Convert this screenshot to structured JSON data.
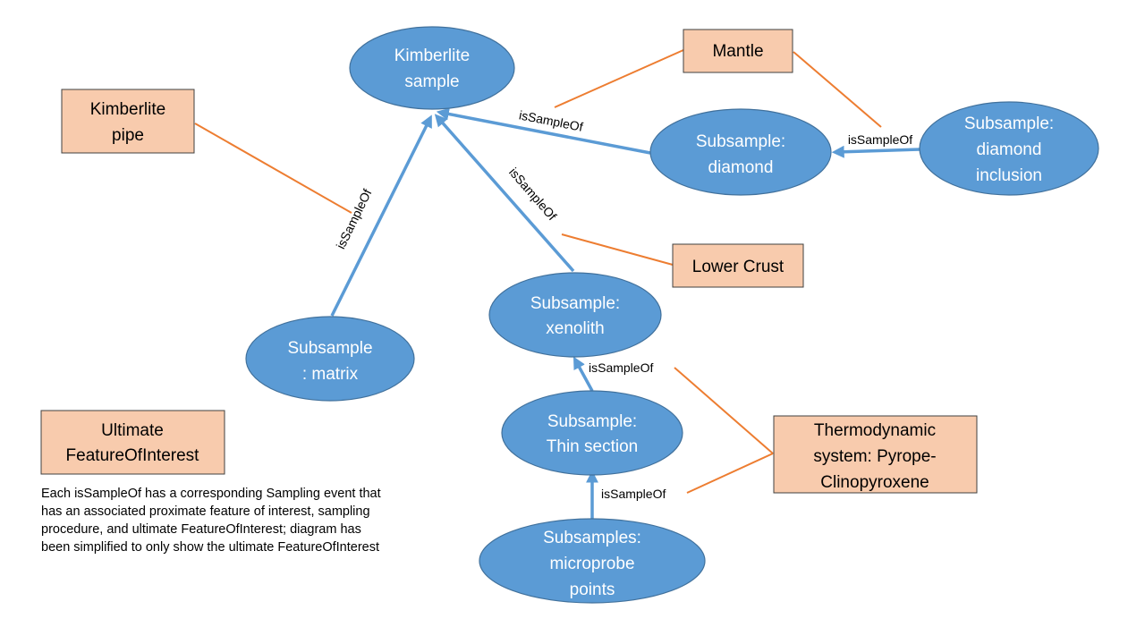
{
  "colors": {
    "ellipse_fill": "#5b9bd5",
    "ellipse_stroke": "#41719c",
    "box_fill": "#f8cbad",
    "box_stroke": "#404040",
    "arrow": "#5b9bd5",
    "connector": "#ed7d31"
  },
  "nodes": {
    "kimberlite_sample": [
      "Kimberlite",
      "sample"
    ],
    "diamond": [
      "Subsample:",
      "diamond"
    ],
    "diamond_inclusion": [
      "Subsample:",
      "diamond",
      "inclusion"
    ],
    "matrix": [
      "Subsample",
      ": matrix"
    ],
    "xenolith": [
      "Subsample:",
      "xenolith"
    ],
    "thin_section": [
      "Subsample:",
      "Thin section"
    ],
    "microprobe": [
      "Subsamples:",
      "microprobe",
      "points"
    ]
  },
  "features": {
    "kimberlite_pipe": [
      "Kimberlite",
      "pipe"
    ],
    "mantle": [
      "Mantle"
    ],
    "lower_crust": [
      "Lower Crust"
    ],
    "thermodynamic": [
      "Thermodynamic",
      "system: Pyrope-",
      "Clinopyroxene"
    ],
    "legend": [
      "Ultimate",
      "FeatureOfInterest"
    ]
  },
  "edge_label": "isSampleOf",
  "note": "Each isSampleOf has a corresponding Sampling event that has an associated proximate feature of interest, sampling procedure, and ultimate FeatureOfInterest; diagram has been simplified to only show the ultimate FeatureOfInterest"
}
